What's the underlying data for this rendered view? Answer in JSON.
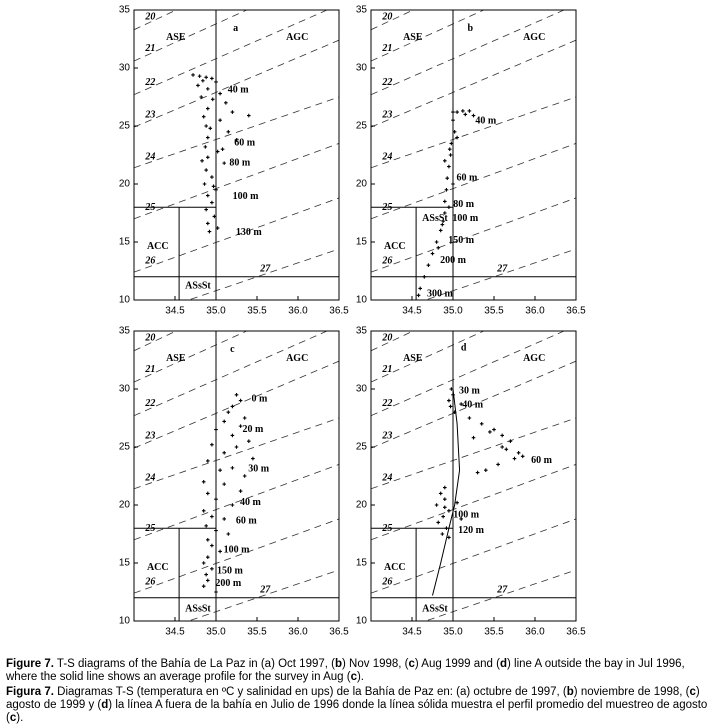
{
  "chart_data": [
    {
      "type": "scatter",
      "xlim": [
        34,
        36.5
      ],
      "ylim": [
        10,
        35
      ],
      "xticks": [
        34.5,
        {
          "value": 35,
          "label": "35.0"
        },
        35.5,
        {
          "value": 36,
          "label": "36.0"
        },
        36.5
      ],
      "yticks": [
        10,
        15,
        20,
        25,
        30,
        35
      ],
      "color": "#000000",
      "x": [
        34.72,
        34.8,
        34.88,
        34.95,
        35.0,
        34.78,
        34.9,
        35.05,
        34.82,
        35.12,
        34.9,
        35.2,
        34.85,
        35.05,
        35.4,
        34.88,
        35.15,
        34.9,
        35.25,
        34.87,
        35.02,
        34.9,
        35.1,
        34.88,
        34.95,
        34.86,
        35.0,
        34.9,
        34.95,
        34.88,
        34.98,
        34.9,
        35.02,
        34.92,
        34.84,
        34.96,
        34.93,
        35.08,
        34.83,
        34.97
      ],
      "values": [
        29.4,
        29.3,
        29.2,
        29.1,
        28.8,
        28.5,
        28.2,
        27.8,
        27.5,
        27.0,
        26.5,
        26.2,
        25.8,
        25.5,
        25.9,
        25.0,
        24.5,
        24.0,
        23.8,
        23.2,
        22.8,
        22.3,
        21.8,
        21.2,
        20.6,
        20.0,
        19.5,
        19.0,
        18.4,
        17.8,
        17.2,
        16.6,
        16.2,
        15.9,
        28.9,
        27.3,
        24.8,
        23.0,
        22.0,
        19.8
      ],
      "annotations": [
        {
          "text": "a",
          "x": 35.24,
          "y": 33.4
        },
        {
          "text": "ASE",
          "x": 34.51,
          "y": 32.6
        },
        {
          "text": "AGC",
          "x": 35.99,
          "y": 32.6
        },
        {
          "text": "ACC",
          "x": 34.29,
          "y": 14.6
        },
        {
          "text": "ASsSt",
          "x": 34.78,
          "y": 11.2
        },
        {
          "text": "40 m",
          "x": 35.27,
          "y": 28.1
        },
        {
          "text": "60 m",
          "x": 35.35,
          "y": 23.5
        },
        {
          "text": "80 m",
          "x": 35.29,
          "y": 21.8
        },
        {
          "text": "100 m",
          "x": 35.36,
          "y": 18.9
        },
        {
          "text": "130 m",
          "x": 35.4,
          "y": 15.8
        }
      ]
    },
    {
      "type": "scatter",
      "xlim": [
        34,
        36.5
      ],
      "ylim": [
        10,
        35
      ],
      "xticks": [
        34.5,
        {
          "value": 35,
          "label": "35.0"
        },
        35.5,
        {
          "value": 36,
          "label": "36.0"
        },
        36.5
      ],
      "yticks": [
        10,
        15,
        20,
        25,
        30,
        35
      ],
      "color": "#000000",
      "x": [
        35.2,
        35.12,
        35.05,
        35.0,
        35.25,
        35.0,
        35.02,
        34.98,
        34.97,
        34.95,
        34.93,
        34.92,
        34.9,
        34.9,
        34.88,
        34.85,
        34.8,
        34.75,
        34.7,
        34.65,
        34.6,
        34.58,
        35.05,
        34.9,
        35.0,
        34.95,
        34.87,
        34.82,
        35.15,
        34.96
      ],
      "values": [
        26.3,
        26.3,
        26.2,
        26.2,
        25.9,
        25.5,
        24.5,
        23.5,
        22.5,
        21.5,
        20.5,
        19.5,
        18.5,
        17.5,
        16.8,
        16.0,
        15.0,
        14.0,
        13.0,
        12.0,
        11.0,
        10.4,
        24.0,
        22.0,
        20.0,
        18.0,
        16.5,
        14.5,
        26.0,
        23.0
      ],
      "annotations": [
        {
          "text": "b",
          "x": 35.21,
          "y": 33.4
        },
        {
          "text": "ASE",
          "x": 34.51,
          "y": 32.6
        },
        {
          "text": "AGC",
          "x": 35.99,
          "y": 32.6
        },
        {
          "text": "ACC",
          "x": 34.29,
          "y": 14.6
        },
        {
          "text": "ASsSt",
          "x": 34.78,
          "y": 17.0
        },
        {
          "text": "40 m",
          "x": 35.4,
          "y": 25.4
        },
        {
          "text": "60 m",
          "x": 35.17,
          "y": 20.5
        },
        {
          "text": "80 m",
          "x": 35.13,
          "y": 18.2
        },
        {
          "text": "100 m",
          "x": 35.15,
          "y": 17.0
        },
        {
          "text": "150 m",
          "x": 35.1,
          "y": 15.1
        },
        {
          "text": "200 m",
          "x": 35.0,
          "y": 13.4
        },
        {
          "text": "300 m",
          "x": 34.84,
          "y": 10.5
        }
      ]
    },
    {
      "type": "scatter",
      "xlim": [
        34,
        36.5
      ],
      "ylim": [
        10,
        35
      ],
      "xticks": [
        34.5,
        {
          "value": 35,
          "label": "35.0"
        },
        35.5,
        {
          "value": 36,
          "label": "36.0"
        },
        36.5
      ],
      "yticks": [
        10,
        15,
        20,
        25,
        30,
        35
      ],
      "color": "#000000",
      "x": [
        35.25,
        35.3,
        35.2,
        35.15,
        35.35,
        35.1,
        35.3,
        35.0,
        35.2,
        35.4,
        34.95,
        35.25,
        35.1,
        35.45,
        34.9,
        35.2,
        35.05,
        35.35,
        34.85,
        35.1,
        35.3,
        34.9,
        35.0,
        35.2,
        34.85,
        34.95,
        35.1,
        34.88,
        35.0,
        35.15,
        34.9,
        34.95,
        35.05,
        34.9,
        34.85,
        34.95,
        34.88,
        34.9,
        34.85,
        35.0
      ],
      "values": [
        29.5,
        29.0,
        28.5,
        28.0,
        27.5,
        27.2,
        26.8,
        26.5,
        26.0,
        25.5,
        25.2,
        25.0,
        24.5,
        24.0,
        23.8,
        23.2,
        23.0,
        22.5,
        22.0,
        21.8,
        21.2,
        21.0,
        20.5,
        20.0,
        19.5,
        19.0,
        18.8,
        18.2,
        17.8,
        17.5,
        17.0,
        16.5,
        16.0,
        15.5,
        15.0,
        14.5,
        14.0,
        13.5,
        13.0,
        12.5
      ],
      "annotations": [
        {
          "text": "c",
          "x": 35.2,
          "y": 33.4
        },
        {
          "text": "ASE",
          "x": 34.51,
          "y": 32.6
        },
        {
          "text": "AGC",
          "x": 35.99,
          "y": 32.6
        },
        {
          "text": "ACC",
          "x": 34.29,
          "y": 14.6
        },
        {
          "text": "ASsSt",
          "x": 34.78,
          "y": 11.0
        },
        {
          "text": "0 m",
          "x": 35.53,
          "y": 29.1
        },
        {
          "text": "20 m",
          "x": 35.45,
          "y": 26.5
        },
        {
          "text": "30 m",
          "x": 35.52,
          "y": 23.1
        },
        {
          "text": "40 m",
          "x": 35.42,
          "y": 20.2
        },
        {
          "text": "60 m",
          "x": 35.37,
          "y": 18.6
        },
        {
          "text": "100 m",
          "x": 35.25,
          "y": 16.1
        },
        {
          "text": "150 m",
          "x": 35.17,
          "y": 14.3
        },
        {
          "text": "200 m",
          "x": 35.15,
          "y": 13.2
        }
      ]
    },
    {
      "type": "scatter",
      "xlim": [
        34,
        36.5
      ],
      "ylim": [
        10,
        35
      ],
      "xticks": [
        34.5,
        {
          "value": 35,
          "label": "35.0"
        },
        35.5,
        {
          "value": 36,
          "label": "36.0"
        },
        36.5
      ],
      "yticks": [
        10,
        15,
        20,
        25,
        30,
        35
      ],
      "color": "#000000",
      "x": [
        34.98,
        35.0,
        34.95,
        34.97,
        35.02,
        35.2,
        35.35,
        35.5,
        35.6,
        35.7,
        35.8,
        35.65,
        35.75,
        35.55,
        35.4,
        35.3,
        35.25,
        35.85,
        35.45,
        35.6,
        35.1,
        34.85,
        34.9,
        34.8,
        34.95,
        34.88,
        34.82,
        34.92,
        34.87,
        34.95,
        34.9,
        35.05,
        34.9,
        35.1
      ],
      "values": [
        30.0,
        29.5,
        29.0,
        28.5,
        28.0,
        27.5,
        27.0,
        26.5,
        26.0,
        25.5,
        24.5,
        24.8,
        24.0,
        23.5,
        23.0,
        22.8,
        25.8,
        24.2,
        26.3,
        25.0,
        28.7,
        21.0,
        20.5,
        20.0,
        19.5,
        19.0,
        18.5,
        18.0,
        17.5,
        17.2,
        21.5,
        20.2,
        19.8,
        18.8
      ],
      "profile": {
        "x": [
          34.75,
          34.85,
          34.95,
          35.02,
          35.08,
          35.05,
          35.0
        ],
        "values": [
          12.2,
          15,
          18,
          20,
          23,
          27,
          30
        ]
      },
      "annotations": [
        {
          "text": "d",
          "x": 35.13,
          "y": 33.5
        },
        {
          "text": "ASE",
          "x": 34.51,
          "y": 32.6
        },
        {
          "text": "AGC",
          "x": 35.99,
          "y": 32.6
        },
        {
          "text": "ACC",
          "x": 34.29,
          "y": 14.6
        },
        {
          "text": "ASsSt",
          "x": 34.78,
          "y": 11.0
        },
        {
          "text": "30 m",
          "x": 35.2,
          "y": 29.8
        },
        {
          "text": "40 m",
          "x": 35.24,
          "y": 28.6
        },
        {
          "text": "60 m",
          "x": 36.08,
          "y": 23.8
        },
        {
          "text": "100 m",
          "x": 35.16,
          "y": 19.1
        },
        {
          "text": "120 m",
          "x": 35.22,
          "y": 17.8
        }
      ]
    }
  ],
  "diagram_common": {
    "isopycnals": [
      {
        "sigma": 20,
        "x": [
          34,
          36.5
        ],
        "values": [
          33.3,
          41.55
        ]
      },
      {
        "sigma": 21,
        "x": [
          34,
          36.5
        ],
        "values": [
          30.6,
          38.6
        ]
      },
      {
        "sigma": 22,
        "x": [
          34,
          36.5
        ],
        "values": [
          27.7,
          35.45
        ]
      },
      {
        "sigma": 23,
        "x": [
          34,
          36.5
        ],
        "values": [
          24.9,
          32.4
        ]
      },
      {
        "sigma": 24,
        "x": [
          34,
          36.5
        ],
        "values": [
          21.4,
          27.5
        ]
      },
      {
        "sigma": 25,
        "x": [
          34,
          36.5
        ],
        "values": [
          17.0,
          23.5
        ]
      },
      {
        "sigma": 26,
        "x": [
          34,
          36.5
        ],
        "values": [
          12.4,
          18.8
        ]
      },
      {
        "sigma": 27,
        "x": [
          34,
          36.5
        ],
        "values": [
          8.4,
          14.4
        ]
      }
    ],
    "water_mass_lines": [
      {
        "x": [
          35,
          35
        ],
        "values": [
          10,
          35
        ]
      },
      {
        "x": [
          34,
          35
        ],
        "values": [
          18,
          18
        ]
      },
      {
        "x": [
          34,
          36.5
        ],
        "values": [
          12,
          12
        ]
      },
      {
        "x": [
          34.55,
          34.55
        ],
        "values": [
          10,
          18
        ]
      }
    ]
  },
  "caption": {
    "en": [
      "Figure 7.",
      " T-S diagrams of the Bahía de La Paz in (a) Oct 1997, (",
      "b",
      ") Nov 1998, (",
      "c",
      ") Aug 1999 and (",
      "d",
      ") line A outside the bay in Jul 1996, where the solid line shows an average profile for the survey in Aug (",
      "c",
      ")."
    ],
    "es": [
      "Figura 7.",
      " Diagramas T-S (temperatura en ºC y salinidad en ups) de la Bahía de Paz en: (a) octubre de 1997, (",
      "b",
      ") noviembre de 1998, (",
      "c",
      ") agosto de 1999 y (",
      "d",
      ") la línea A fuera de la bahía en Julio de 1996 donde la línea sólida muestra el perfil promedio del muestreo de agosto (",
      "c",
      ")."
    ]
  }
}
